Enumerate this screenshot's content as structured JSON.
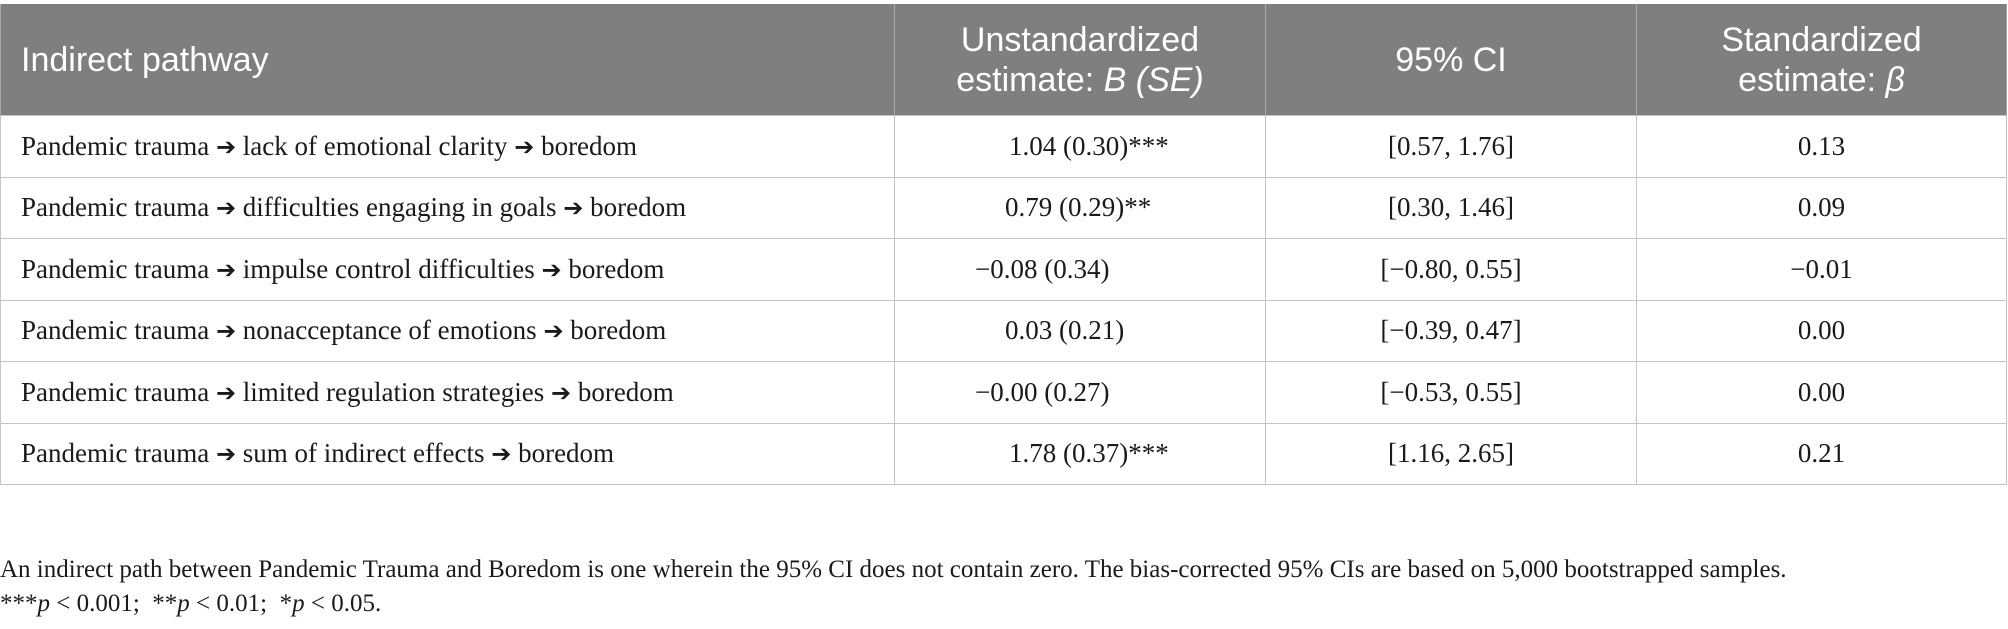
{
  "table": {
    "headers": {
      "col1": "Indirect pathway",
      "col2_line1": "Unstandardized",
      "col2_line2_prefix": "estimate: ",
      "col2_line2_italic": "B (SE)",
      "col3": "95% CI",
      "col4_line1": "Standardized",
      "col4_line2_prefix": "estimate: ",
      "col4_line2_italic": "β"
    },
    "arrow_glyph": "➔",
    "rows": [
      {
        "source": "Pandemic trauma",
        "mediator": "lack of emotional clarity",
        "outcome": "boredom",
        "estimate": "1.04 (0.30)***",
        "ci": "[0.57, 1.76]",
        "beta": "0.13"
      },
      {
        "source": "Pandemic trauma",
        "mediator": "difficulties engaging in goals",
        "outcome": "boredom",
        "estimate": "0.79 (0.29)**",
        "ci": "[0.30, 1.46]",
        "beta": "0.09"
      },
      {
        "source": "Pandemic trauma",
        "mediator": "impulse control difficulties",
        "outcome": "boredom",
        "estimate": "−0.08 (0.34)",
        "ci": "[−0.80, 0.55]",
        "beta": "−0.01"
      },
      {
        "source": "Pandemic trauma",
        "mediator": "nonacceptance of emotions",
        "outcome": "boredom",
        "estimate": "0.03 (0.21)",
        "ci": "[−0.39, 0.47]",
        "beta": "0.00"
      },
      {
        "source": "Pandemic trauma",
        "mediator": "limited regulation strategies",
        "outcome": "boredom",
        "estimate": "−0.00 (0.27)",
        "ci": "[−0.53, 0.55]",
        "beta": "0.00"
      },
      {
        "source": "Pandemic trauma",
        "mediator": "sum of indirect effects",
        "outcome": "boredom",
        "estimate": "1.78 (0.37)***",
        "ci": "[1.16, 2.65]",
        "beta": "0.21"
      }
    ]
  },
  "footnote": {
    "line1": "An indirect path between Pandemic Trauma and Boredom is one wherein the 95% CI does not contain zero. The bias-corrected 95% CIs are based on 5,000 bootstrapped samples.",
    "sig": [
      {
        "stars": "***",
        "p": "p",
        "rest": " < 0.001;"
      },
      {
        "stars": "**",
        "p": "p",
        "rest": " < 0.01;"
      },
      {
        "stars": "*",
        "p": "p",
        "rest": " < 0.05."
      }
    ]
  }
}
